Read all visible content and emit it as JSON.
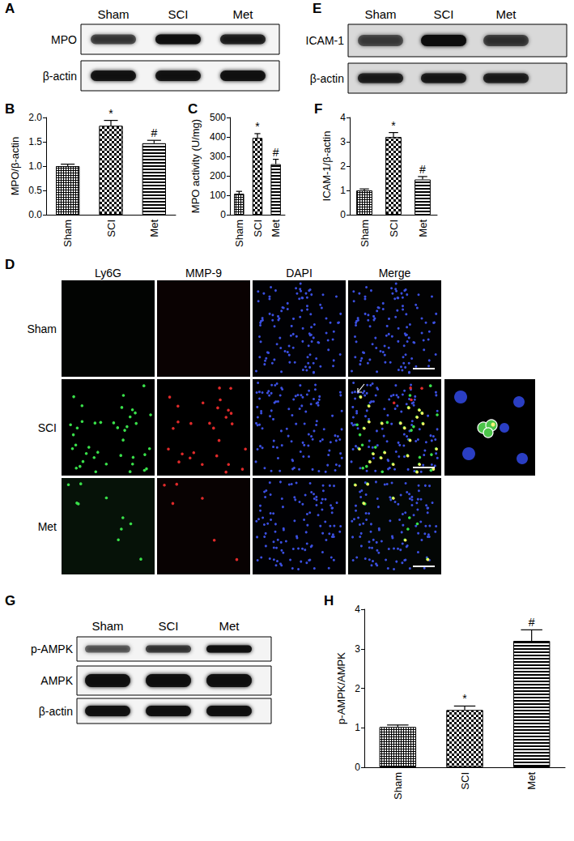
{
  "panels": {
    "A": {
      "label": "A",
      "lanes": [
        "Sham",
        "SCI",
        "Met"
      ],
      "rows": [
        "MPO",
        "β-actin"
      ]
    },
    "E": {
      "label": "E",
      "lanes": [
        "Sham",
        "SCI",
        "Met"
      ],
      "rows": [
        "ICAM-1",
        "β-actin"
      ]
    },
    "D": {
      "label": "D",
      "columns": [
        "Ly6G",
        "MMP-9",
        "DAPI",
        "Merge"
      ],
      "rows": [
        "Sham",
        "SCI",
        "Met"
      ]
    },
    "G": {
      "label": "G",
      "lanes": [
        "Sham",
        "SCI",
        "Met"
      ],
      "rows": [
        "p-AMPK",
        "AMPK",
        "β-actin"
      ]
    }
  },
  "chart_data": [
    {
      "panel": "B",
      "type": "bar",
      "y_label": "MPO/β-actin",
      "categories": [
        "Sham",
        "SCI",
        "Met"
      ],
      "values": [
        1.0,
        1.83,
        1.47
      ],
      "errors": [
        0.04,
        0.11,
        0.06
      ],
      "annotations": [
        null,
        "*",
        "#"
      ],
      "colors": [
        "#000000",
        "#000000",
        "#000000"
      ],
      "ylim": [
        0,
        2
      ],
      "yticks": [
        {
          "value": 0,
          "label": "0.0"
        },
        0.5,
        {
          "value": 1,
          "label": "1.0"
        },
        1.5,
        {
          "value": 2,
          "label": "2.0"
        }
      ],
      "grid": false
    },
    {
      "panel": "C",
      "type": "bar",
      "y_label": "MPO activity (U/mg)",
      "categories": [
        "Sham",
        "SCI",
        "Met"
      ],
      "values": [
        108,
        395,
        260
      ],
      "errors": [
        12,
        22,
        25
      ],
      "annotations": [
        null,
        "*",
        "#"
      ],
      "colors": [
        "#000000",
        "#000000",
        "#000000"
      ],
      "ylim": [
        0,
        500
      ],
      "yticks": [
        0,
        100,
        200,
        300,
        400,
        500
      ],
      "grid": false
    },
    {
      "panel": "F",
      "type": "bar",
      "y_label": "ICAM-1/β-actin",
      "categories": [
        "Sham",
        "SCI",
        "Met"
      ],
      "values": [
        1.0,
        3.2,
        1.45
      ],
      "errors": [
        0.06,
        0.18,
        0.12
      ],
      "annotations": [
        null,
        "*",
        "#"
      ],
      "colors": [
        "#000000",
        "#000000",
        "#000000"
      ],
      "ylim": [
        0,
        4
      ],
      "yticks": [
        0,
        1,
        2,
        3,
        4
      ],
      "grid": false
    },
    {
      "panel": "H",
      "type": "bar",
      "y_label": "p-AMPK/AMPK",
      "categories": [
        "Sham",
        "SCI",
        "Met"
      ],
      "values": [
        1.02,
        1.45,
        3.2
      ],
      "errors": [
        0.05,
        0.1,
        0.28
      ],
      "annotations": [
        null,
        "*",
        "#"
      ],
      "colors": [
        "#000000",
        "#000000",
        "#000000"
      ],
      "ylim": [
        0,
        4
      ],
      "yticks": [
        0,
        1,
        2,
        3,
        4
      ],
      "grid": false
    }
  ]
}
